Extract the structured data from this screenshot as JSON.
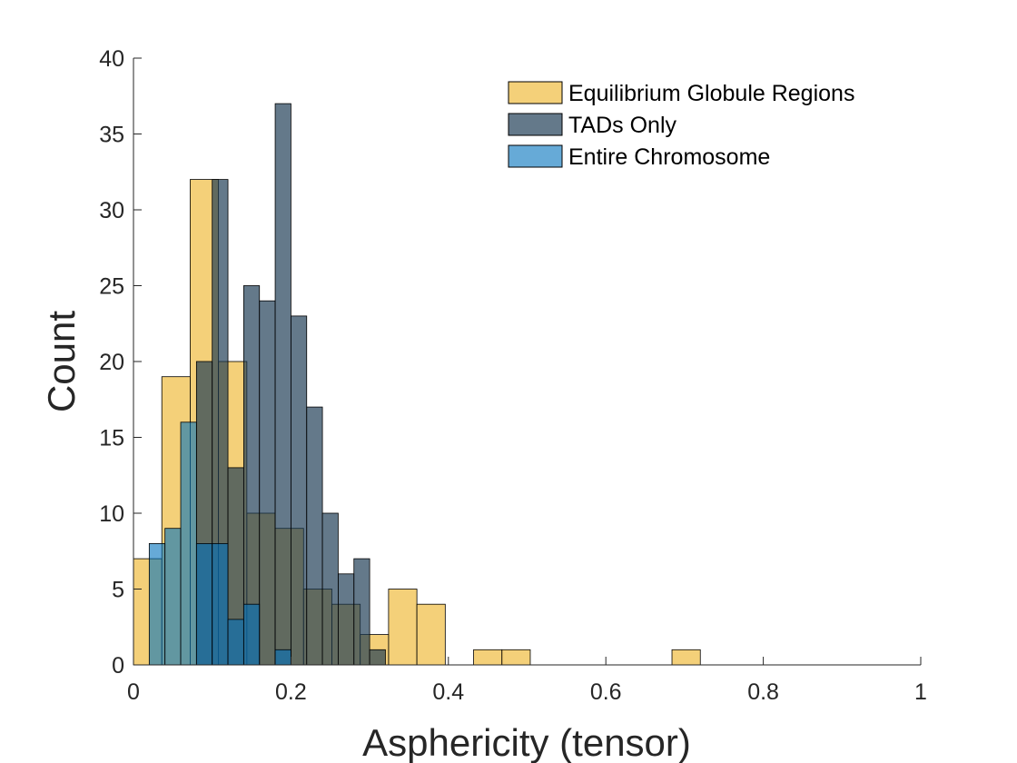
{
  "chart_data": {
    "type": "bar",
    "title": "",
    "xlabel": "Asphericity (tensor)",
    "ylabel": "Count",
    "xlim": [
      0,
      1
    ],
    "ylim": [
      0,
      40
    ],
    "xticks": [
      0,
      0.2,
      0.4,
      0.6,
      0.8,
      1
    ],
    "xtick_labels": [
      "0",
      "0.2",
      "0.4",
      "0.6",
      "0.8",
      "1"
    ],
    "yticks": [
      0,
      5,
      10,
      15,
      20,
      25,
      30,
      35,
      40
    ],
    "ytick_labels": [
      "0",
      "5",
      "10",
      "15",
      "20",
      "25",
      "30",
      "35",
      "40"
    ],
    "grid": false,
    "legend_position": "top-right",
    "series": [
      {
        "name": "Equilibrium Globule Regions",
        "color": "#EDB120",
        "opacity": 0.6,
        "bin_edges": [
          0,
          0.036,
          0.072,
          0.108,
          0.144,
          0.18,
          0.216,
          0.252,
          0.288,
          0.324,
          0.36,
          0.396,
          0.432,
          0.468,
          0.504,
          0.54,
          0.576,
          0.612,
          0.648,
          0.684,
          0.72
        ],
        "values": [
          7,
          19,
          32,
          20,
          10,
          9,
          5,
          4,
          2,
          5,
          4,
          0,
          1,
          1,
          0,
          0,
          0,
          0,
          0,
          1
        ]
      },
      {
        "name": "TADs Only",
        "color": "#1B3A52",
        "opacity": 0.68,
        "bin_edges": [
          0.08,
          0.1,
          0.12,
          0.14,
          0.16,
          0.18,
          0.2,
          0.22,
          0.24,
          0.26,
          0.28,
          0.3,
          0.32,
          0.34
        ],
        "values": [
          20,
          32,
          13,
          25,
          24,
          37,
          23,
          17,
          10,
          6,
          7,
          1,
          0
        ]
      },
      {
        "name": "Entire Chromosome",
        "color": "#0072BD",
        "opacity": 0.6,
        "bin_edges": [
          0.02,
          0.04,
          0.06,
          0.08,
          0.1,
          0.12,
          0.14,
          0.16,
          0.18,
          0.2
        ],
        "values": [
          8,
          9,
          16,
          8,
          8,
          3,
          4,
          0,
          1
        ]
      }
    ]
  }
}
